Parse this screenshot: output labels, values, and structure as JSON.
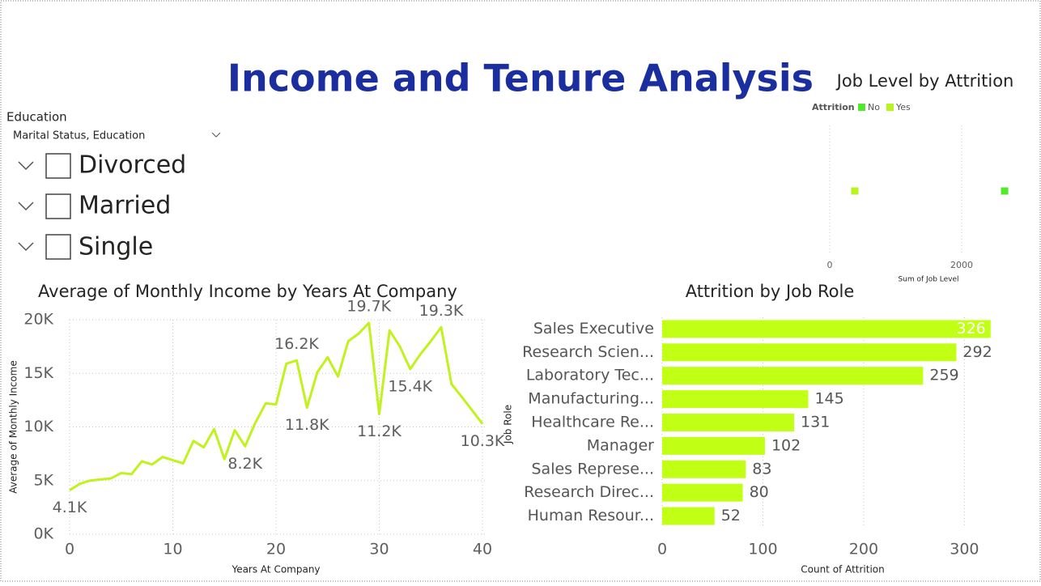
{
  "header": {
    "title": "Income and Tenure Analysis"
  },
  "slicer": {
    "title": "Education",
    "field": "Marital Status, Education",
    "items": [
      "Divorced",
      "Married",
      "Single"
    ]
  },
  "chart_data": [
    {
      "type": "line",
      "title": "Average of Monthly Income by Years At Company",
      "x_label": "Years At Company",
      "y_label": "Average of Monthly Income",
      "x": [
        0,
        1,
        2,
        3,
        4,
        5,
        6,
        7,
        8,
        9,
        10,
        11,
        12,
        13,
        14,
        15,
        16,
        17,
        18,
        19,
        20,
        21,
        22,
        23,
        24,
        25,
        26,
        27,
        28,
        29,
        30,
        31,
        32,
        33,
        34,
        35,
        36,
        37,
        38,
        40
      ],
      "values": [
        4100,
        4700,
        5000,
        5100,
        5200,
        5700,
        5600,
        6800,
        6500,
        7200,
        6900,
        6600,
        8700,
        8100,
        9800,
        7000,
        9700,
        8200,
        10400,
        12200,
        12100,
        15900,
        16200,
        11800,
        15100,
        16500,
        14700,
        18000,
        18700,
        19700,
        11200,
        19000,
        17500,
        15400,
        16800,
        18000,
        19300,
        14000,
        12800,
        10300
      ],
      "value_labels": [
        "4.1K",
        null,
        null,
        null,
        null,
        null,
        null,
        null,
        null,
        null,
        null,
        null,
        null,
        null,
        null,
        null,
        null,
        "8.2K",
        null,
        null,
        null,
        null,
        "16.2K",
        "11.8K",
        null,
        null,
        null,
        null,
        null,
        "19.7K",
        "11.2K",
        null,
        null,
        "15.4K",
        null,
        null,
        "19.3K",
        null,
        null,
        "10.3K"
      ],
      "color": "#c1f21d",
      "xlim": [
        0,
        40
      ],
      "xticks": [
        0,
        10,
        20,
        30,
        40
      ],
      "ylim": [
        0,
        20000
      ],
      "yticks": [
        {
          "value": 0,
          "label": "0K"
        },
        {
          "value": 5000,
          "label": "5K"
        },
        {
          "value": 10000,
          "label": "10K"
        },
        {
          "value": 15000,
          "label": "15K"
        },
        {
          "value": 20000,
          "label": "20K"
        }
      ],
      "grid": true
    },
    {
      "type": "bar",
      "orientation": "horizontal",
      "title": "Attrition by Job Role",
      "x_label": "Count of Attrition",
      "y_label": "Job Role",
      "categories": [
        "Sales Executive",
        "Research Scien...",
        "Laboratory Tec...",
        "Manufacturing...",
        "Healthcare Re...",
        "Manager",
        "Sales Represe...",
        "Research Direc...",
        "Human Resour..."
      ],
      "values": [
        326,
        292,
        259,
        145,
        131,
        102,
        83,
        80,
        52
      ],
      "color": "#c1ff14",
      "xlim": [
        0,
        327
      ],
      "xticks": [
        0,
        100,
        200,
        300
      ],
      "grid": true
    },
    {
      "type": "scatter",
      "title": "Job Level by Attrition",
      "x_label": "Sum of Job Level",
      "legend_title": "Attrition",
      "series": [
        {
          "name": "No",
          "color": "#52e82c",
          "values": [
            2650
          ]
        },
        {
          "name": "Yes",
          "color": "#b8f51c",
          "values": [
            380
          ]
        }
      ],
      "xlim": [
        0,
        2760
      ],
      "xticks": [
        0,
        2000
      ],
      "grid": true
    }
  ]
}
